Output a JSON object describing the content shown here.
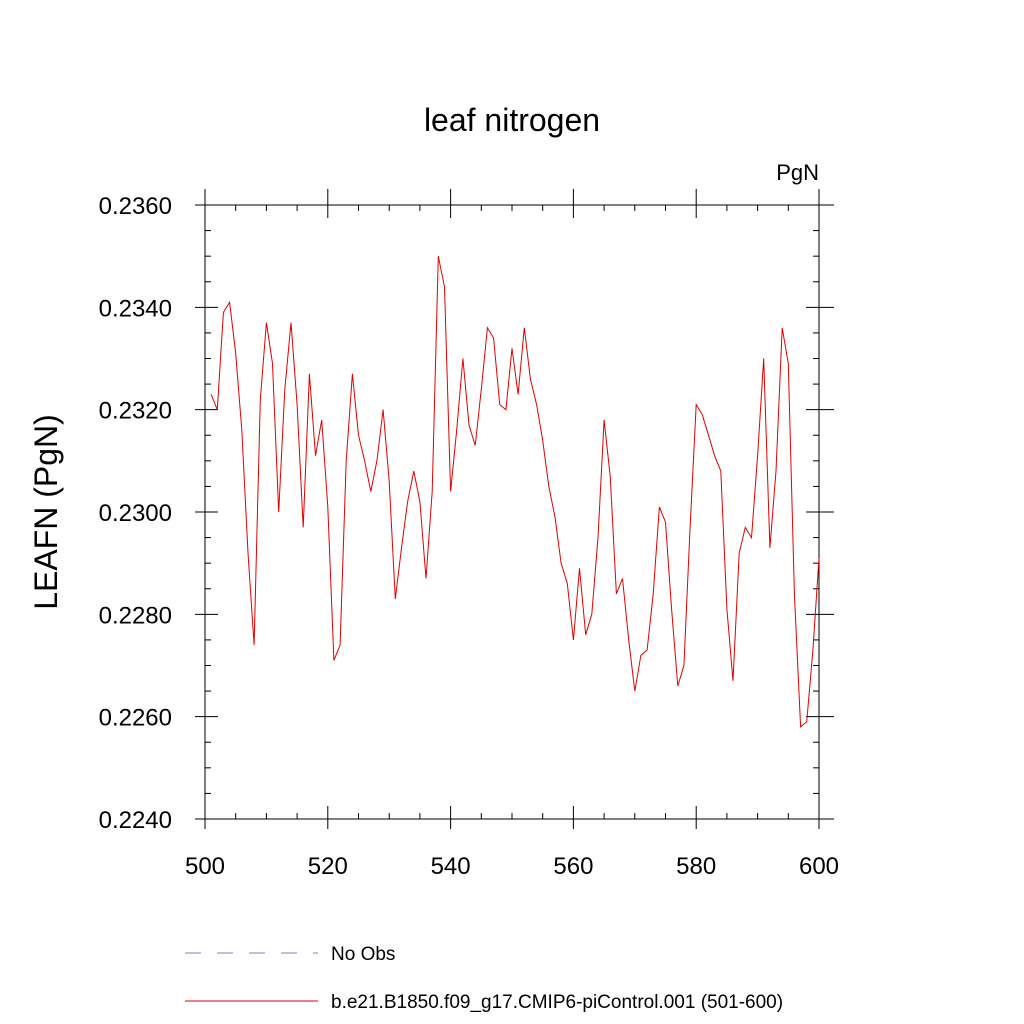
{
  "chart_data": {
    "type": "line",
    "title": "leaf nitrogen",
    "units": "PgN",
    "ylabel": "LEAFN  (PgN)",
    "xlabel": "",
    "xlim": [
      500,
      600
    ],
    "ylim": [
      0.224,
      0.236
    ],
    "x_ticks": [
      500,
      520,
      540,
      560,
      580,
      600
    ],
    "x_tick_labels": [
      "500",
      "520",
      "540",
      "560",
      "580",
      "600"
    ],
    "y_ticks": [
      0.224,
      0.226,
      0.228,
      0.23,
      0.232,
      0.234,
      0.236
    ],
    "y_tick_labels": [
      "0.2240",
      "0.2260",
      "0.2280",
      "0.2300",
      "0.2320",
      "0.2340",
      "0.2360"
    ],
    "grid": false,
    "legend_placement": "bottom",
    "legend": [
      {
        "label": "No Obs",
        "color": "#8080c0",
        "style": "dashed"
      },
      {
        "label": "b.e21.B1850.f09_g17.CMIP6-piControl.001 (501-600)",
        "color": "#e00000",
        "style": "solid"
      }
    ],
    "series": [
      {
        "name": "b.e21.B1850.f09_g17.CMIP6-piControl.001 (501-600)",
        "color": "#e00000",
        "x": [
          501,
          502,
          503,
          504,
          505,
          506,
          507,
          508,
          509,
          510,
          511,
          512,
          513,
          514,
          515,
          516,
          517,
          518,
          519,
          520,
          521,
          522,
          523,
          524,
          525,
          526,
          527,
          528,
          529,
          530,
          531,
          532,
          533,
          534,
          535,
          536,
          537,
          538,
          539,
          540,
          541,
          542,
          543,
          544,
          545,
          546,
          547,
          548,
          549,
          550,
          551,
          552,
          553,
          554,
          555,
          556,
          557,
          558,
          559,
          560,
          561,
          562,
          563,
          564,
          565,
          566,
          567,
          568,
          569,
          570,
          571,
          572,
          573,
          574,
          575,
          576,
          577,
          578,
          579,
          580,
          581,
          582,
          583,
          584,
          585,
          586,
          587,
          588,
          589,
          590,
          591,
          592,
          593,
          594,
          595,
          596,
          597,
          598,
          599,
          600
        ],
        "y": [
          0.2323,
          0.232,
          0.2339,
          0.2341,
          0.2331,
          0.2316,
          0.2292,
          0.2274,
          0.2322,
          0.2337,
          0.2329,
          0.23,
          0.2324,
          0.2337,
          0.2321,
          0.2297,
          0.2327,
          0.2311,
          0.2318,
          0.2301,
          0.2271,
          0.2274,
          0.231,
          0.2327,
          0.2315,
          0.231,
          0.2304,
          0.231,
          0.232,
          0.2306,
          0.2283,
          0.2293,
          0.2302,
          0.2308,
          0.2302,
          0.2287,
          0.2304,
          0.235,
          0.2344,
          0.2304,
          0.2316,
          0.233,
          0.2317,
          0.2313,
          0.2324,
          0.2336,
          0.2334,
          0.2321,
          0.232,
          0.2332,
          0.2323,
          0.2336,
          0.2326,
          0.2321,
          0.2314,
          0.2305,
          0.2299,
          0.229,
          0.2286,
          0.2275,
          0.2289,
          0.2276,
          0.228,
          0.2295,
          0.2318,
          0.2307,
          0.2284,
          0.2287,
          0.2275,
          0.2265,
          0.2272,
          0.2273,
          0.2284,
          0.2301,
          0.2298,
          0.2281,
          0.2266,
          0.227,
          0.2297,
          0.2321,
          0.2319,
          0.2315,
          0.2311,
          0.2308,
          0.2281,
          0.2267,
          0.2292,
          0.2297,
          0.2295,
          0.2311,
          0.233,
          0.2293,
          0.2308,
          0.2336,
          0.2329,
          0.2284,
          0.2258,
          0.2259,
          0.2273,
          0.2291
        ]
      }
    ]
  }
}
